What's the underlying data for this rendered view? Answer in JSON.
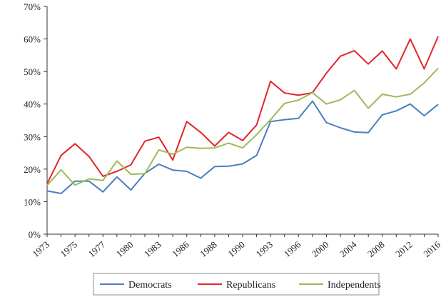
{
  "chart_data": {
    "type": "line",
    "title": "",
    "xlabel": "",
    "ylabel": "",
    "ylim": [
      0,
      70
    ],
    "y_ticks": [
      "0%",
      "10%",
      "20%",
      "30%",
      "40%",
      "50%",
      "60%",
      "70%"
    ],
    "x_tick_labels": [
      "1973",
      "1975",
      "1977",
      "1980",
      "1983",
      "1986",
      "1988",
      "1990",
      "1993",
      "1996",
      "2000",
      "2004",
      "2008",
      "2012",
      "2016"
    ],
    "x_tick_positions": [
      0,
      2,
      4,
      6,
      8,
      10,
      12,
      14,
      16,
      18,
      20,
      22,
      24,
      26,
      28
    ],
    "grid": false,
    "legend_position": "bottom",
    "series": [
      {
        "name": "Democrats",
        "color": "#4a7ebb",
        "values": [
          13.3,
          12.5,
          16.3,
          16.3,
          13.0,
          17.6,
          13.6,
          18.7,
          21.5,
          19.7,
          19.3,
          17.2,
          20.8,
          20.9,
          21.6,
          24.2,
          34.6,
          35.2,
          35.6,
          40.9,
          34.3,
          32.7,
          31.4,
          31.2,
          36.7,
          37.9,
          40.0,
          36.4,
          39.9
        ]
      },
      {
        "name": "Republicans",
        "color": "#e0262a",
        "values": [
          15.5,
          24.2,
          27.8,
          23.9,
          17.8,
          19.3,
          21.3,
          28.6,
          29.8,
          22.8,
          34.6,
          31.3,
          27.1,
          31.3,
          28.8,
          33.6,
          47.0,
          43.4,
          42.7,
          43.5,
          49.5,
          54.7,
          56.4,
          52.3,
          56.3,
          50.8,
          60.0,
          50.8,
          60.8
        ]
      },
      {
        "name": "Independents",
        "color": "#9bbb59",
        "values": [
          15.0,
          19.8,
          15.1,
          17.0,
          16.5,
          22.5,
          18.4,
          18.6,
          25.9,
          24.6,
          26.7,
          26.4,
          26.5,
          28.0,
          26.5,
          30.6,
          35.2,
          40.2,
          41.2,
          43.5,
          40.0,
          41.3,
          44.2,
          38.7,
          43.0,
          42.2,
          43.0,
          46.5,
          51.0
        ]
      }
    ]
  }
}
